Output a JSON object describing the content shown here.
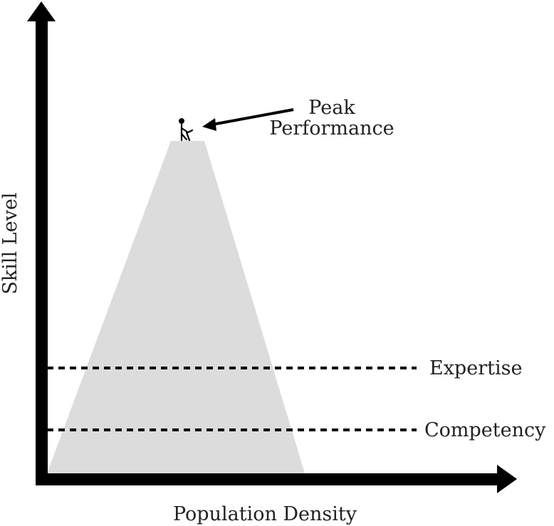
{
  "diagram": {
    "y_axis_label": "Skill Level",
    "x_axis_label": "Population Density",
    "peak_label_line1": "Peak",
    "peak_label_line2": "Performance",
    "level_expertise": "Expertise",
    "level_competency": "Competency",
    "colors": {
      "axis": "#000000",
      "mountain": "#dcdcdc",
      "text": "#222222"
    },
    "icons": [
      "person-icon",
      "arrow-icon"
    ]
  }
}
